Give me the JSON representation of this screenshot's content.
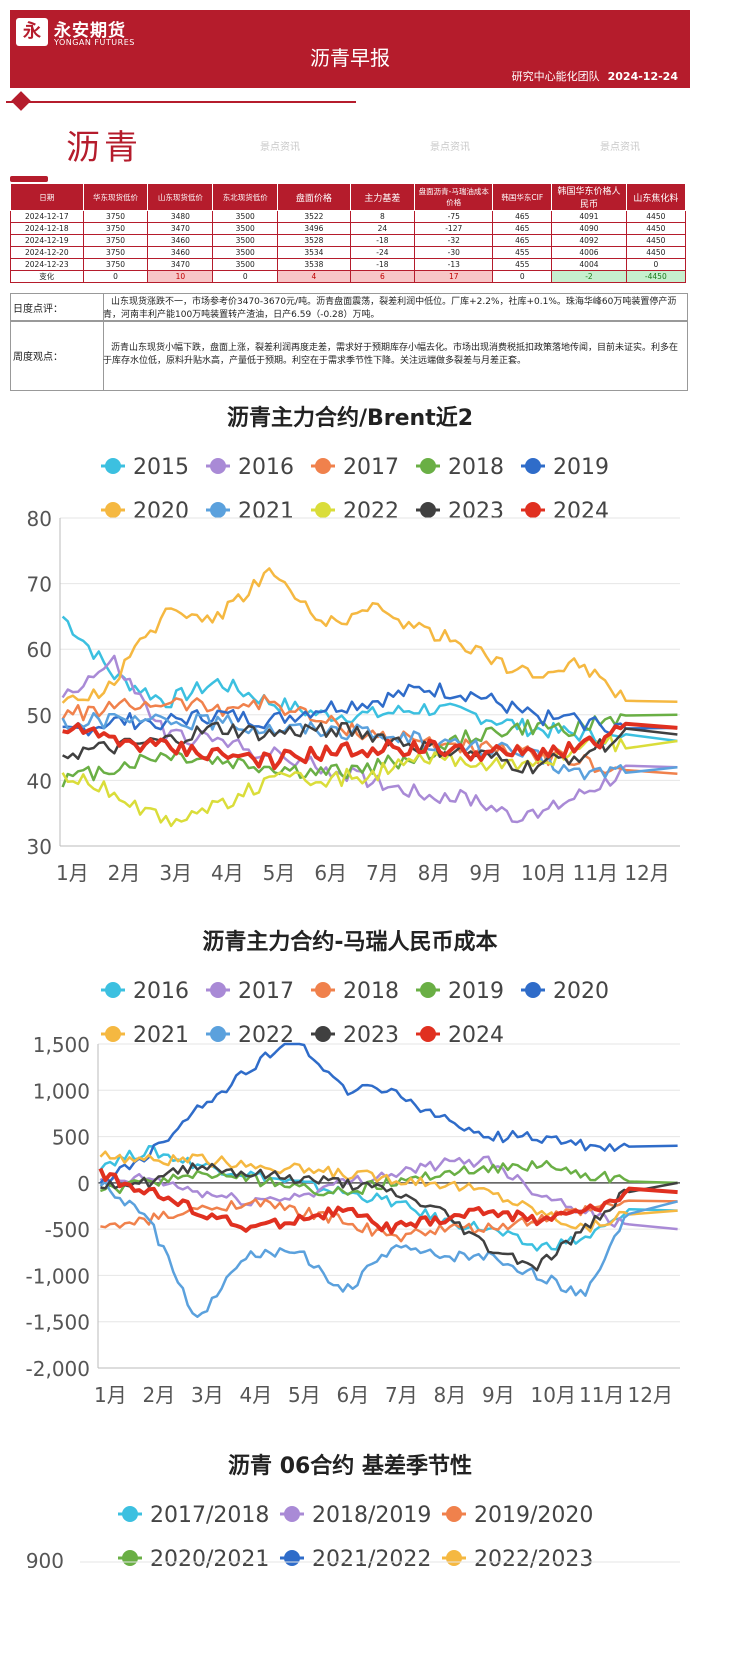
{
  "header": {
    "logo_cn": "永安期货",
    "logo_en": "YONGAN FUTURES",
    "logo_mark": "永",
    "title": "沥青早报",
    "team": "研究中心能化团队",
    "date": "2024-12-24"
  },
  "page_title": "沥青",
  "table": {
    "headers": [
      "日期",
      "华东现货低价",
      "山东现货低价",
      "东北现货低价",
      "盘面价格",
      "主力基差",
      "盘面沥青-马瑞油成本价格",
      "韩国华东CIF",
      "韩国华东价格人民币",
      "山东焦化料"
    ],
    "rows": [
      [
        "2024-12-17",
        "3750",
        "3480",
        "3500",
        "3522",
        "8",
        "-75",
        "465",
        "4091",
        "4450"
      ],
      [
        "2024-12-18",
        "3750",
        "3470",
        "3500",
        "3496",
        "24",
        "-127",
        "465",
        "4090",
        "4450"
      ],
      [
        "2024-12-19",
        "3750",
        "3460",
        "3500",
        "3528",
        "-18",
        "-32",
        "465",
        "4092",
        "4450"
      ],
      [
        "2024-12-20",
        "3750",
        "3460",
        "3500",
        "3534",
        "-24",
        "-30",
        "455",
        "4006",
        "4450"
      ],
      [
        "2024-12-23",
        "3750",
        "3470",
        "3500",
        "3538",
        "-18",
        "-13",
        "455",
        "4004",
        "0"
      ]
    ],
    "change": [
      "变化",
      "0",
      "10",
      "0",
      "4",
      "6",
      "17",
      "0",
      "-2",
      "-4450"
    ]
  },
  "daily": {
    "label": "日度点评：",
    "text": "山东现货涨跌不一，市场参考价3470-3670元/吨。沥青盘面震荡，裂差利润中低位。厂库+2.2%，社库+0.1%。珠海华峰60万吨装置停产沥青，河南丰利产能100万吨装置转产渣油，日产6.59（-0.28）万吨。"
  },
  "weekly": {
    "label": "周度观点：",
    "text": "沥青山东现货小幅下跌，盘面上涨，裂差利润再度走差，需求好于预期库存小幅去化。市场出现消费税抵扣政策落地传闻，目前未证实。利多在于库存水位低，原料升贴水高，产量低于预期。利空在于需求季节性下降。关注远端做多裂差与月差正套。"
  },
  "watermark": "景点资讯",
  "months": [
    "1月",
    "2月",
    "3月",
    "4月",
    "5月",
    "6月",
    "7月",
    "8月",
    "9月",
    "10月",
    "11月",
    "12月"
  ],
  "chart_data": [
    {
      "type": "line",
      "title": "沥青主力合约/Brent近2",
      "ylim": [
        30,
        80
      ],
      "yticks": [
        "80",
        "70",
        "60",
        "50",
        "40",
        "30"
      ],
      "x": [
        "1月",
        "2月",
        "3月",
        "4月",
        "5月",
        "6月",
        "7月",
        "8月",
        "9月",
        "10月",
        "11月",
        "12月"
      ],
      "series": [
        {
          "name": "2015",
          "color": "#3cc0e0",
          "values": [
            65,
            56,
            52,
            55,
            52,
            50,
            50,
            51,
            50,
            48,
            47,
            46
          ]
        },
        {
          "name": "2016",
          "color": "#a98ad6",
          "values": [
            53,
            58,
            47,
            46,
            44,
            42,
            40,
            38,
            37,
            34,
            38,
            42
          ]
        },
        {
          "name": "2017",
          "color": "#f0814c",
          "values": [
            50,
            51,
            52,
            51,
            52,
            49,
            47,
            46,
            45,
            44,
            43,
            41
          ]
        },
        {
          "name": "2018",
          "color": "#6aaf45",
          "values": [
            40,
            42,
            44,
            43,
            42,
            41,
            42,
            44,
            47,
            48,
            48,
            50
          ]
        },
        {
          "name": "2019",
          "color": "#2f6cc9",
          "values": [
            47,
            49,
            49,
            50,
            49,
            51,
            52,
            54,
            53,
            50,
            49,
            48
          ]
        },
        {
          "name": "2020",
          "color": "#f5b841",
          "values": [
            51,
            55,
            66,
            65,
            72,
            64,
            66,
            63,
            60,
            56,
            58,
            52
          ]
        },
        {
          "name": "2021",
          "color": "#5ba1dd",
          "values": [
            49,
            49,
            49,
            49,
            48,
            48,
            47,
            46,
            45,
            44,
            41,
            42
          ]
        },
        {
          "name": "2022",
          "color": "#dadd3a",
          "values": [
            41,
            38,
            34,
            36,
            40,
            40,
            41,
            43,
            43,
            42,
            45,
            46
          ]
        },
        {
          "name": "2023",
          "color": "#404040",
          "values": [
            44,
            45,
            46,
            48,
            47,
            48,
            47,
            45,
            44,
            42,
            44,
            47
          ]
        },
        {
          "name": "2024",
          "color": "#e03020",
          "values": [
            48,
            46,
            45,
            44,
            43,
            44,
            45,
            45,
            44,
            44,
            45,
            48
          ]
        }
      ]
    },
    {
      "type": "line",
      "title": "沥青主力合约-马瑞人民币成本",
      "ylim": [
        -2000,
        1500
      ],
      "yticks": [
        "1,500",
        "1,000",
        "500",
        "0",
        "-500",
        "-1,000",
        "-1,500",
        "-2,000"
      ],
      "x": [
        "1月",
        "2月",
        "3月",
        "4月",
        "5月",
        "6月",
        "7月",
        "8月",
        "9月",
        "10月",
        "11月",
        "12月"
      ],
      "series": [
        {
          "name": "2016",
          "color": "#3cc0e0",
          "values": [
            200,
            350,
            200,
            100,
            0,
            -100,
            -200,
            -400,
            -500,
            -700,
            -600,
            -300
          ]
        },
        {
          "name": "2017",
          "color": "#a98ad6",
          "values": [
            0,
            50,
            -100,
            -200,
            -150,
            0,
            100,
            200,
            250,
            -100,
            -300,
            -500
          ]
        },
        {
          "name": "2018",
          "color": "#f0814c",
          "values": [
            -500,
            -400,
            -300,
            -200,
            -300,
            -400,
            -600,
            -500,
            -500,
            -400,
            -300,
            -200
          ]
        },
        {
          "name": "2019",
          "color": "#6aaf45",
          "values": [
            -100,
            0,
            100,
            50,
            -50,
            -100,
            0,
            100,
            150,
            200,
            100,
            0
          ]
        },
        {
          "name": "2020",
          "color": "#2f6cc9",
          "values": [
            0,
            300,
            800,
            1200,
            1600,
            1000,
            1000,
            700,
            500,
            500,
            400,
            400
          ]
        },
        {
          "name": "2021",
          "color": "#f5b841",
          "values": [
            300,
            250,
            250,
            200,
            150,
            100,
            50,
            0,
            -100,
            -300,
            -500,
            -300
          ]
        },
        {
          "name": "2022",
          "color": "#5ba1dd",
          "values": [
            0,
            -400,
            -1500,
            -800,
            -700,
            -1200,
            -700,
            -800,
            -800,
            -1000,
            -1200,
            -200
          ]
        },
        {
          "name": "2023",
          "color": "#404040",
          "values": [
            0,
            0,
            200,
            100,
            50,
            0,
            -100,
            -300,
            -700,
            -900,
            -500,
            0
          ]
        },
        {
          "name": "2024",
          "color": "#e03020",
          "values": [
            100,
            -100,
            -300,
            -500,
            -400,
            -300,
            -500,
            -400,
            -300,
            -400,
            -300,
            -100
          ]
        }
      ]
    },
    {
      "type": "line",
      "title": "沥青 06合约 基差季节性",
      "ylim_top": "900",
      "series": [
        {
          "name": "2017/2018",
          "color": "#3cc0e0"
        },
        {
          "name": "2018/2019",
          "color": "#a98ad6"
        },
        {
          "name": "2019/2020",
          "color": "#f0814c"
        },
        {
          "name": "2020/2021",
          "color": "#6aaf45"
        },
        {
          "name": "2021/2022",
          "color": "#2f6cc9"
        },
        {
          "name": "2022/2023",
          "color": "#f5b841"
        }
      ]
    }
  ]
}
